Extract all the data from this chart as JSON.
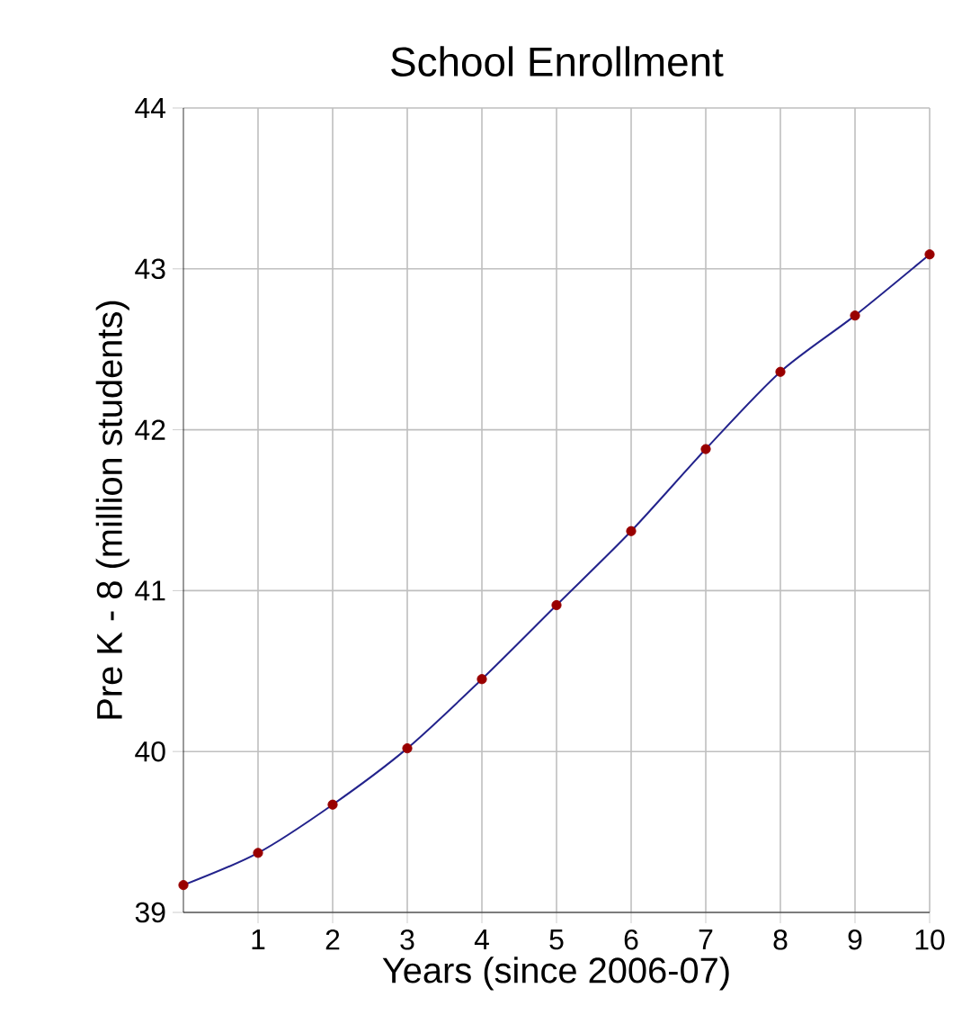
{
  "chart_data": {
    "type": "scatter",
    "title": "School Enrollment",
    "xlabel": "Years (since 2006-07)",
    "ylabel": "Pre K - 8 (million students)",
    "x": [
      0,
      1,
      2,
      3,
      4,
      5,
      6,
      7,
      8,
      9,
      10
    ],
    "series": [
      {
        "type": "line",
        "color": "#23238c",
        "marker": "none",
        "values": [
          39.17,
          39.37,
          39.67,
          40.02,
          40.45,
          40.91,
          41.37,
          41.88,
          42.36,
          42.71,
          43.09
        ]
      },
      {
        "color": "#990000",
        "marker": "circle",
        "values": [
          39.17,
          39.37,
          39.67,
          40.02,
          40.45,
          40.91,
          41.37,
          41.88,
          42.36,
          42.71,
          43.09
        ]
      }
    ],
    "xlim": [
      0,
      10
    ],
    "ylim": [
      39,
      44
    ],
    "xticks": [
      1,
      2,
      3,
      4,
      5,
      6,
      7,
      8,
      9,
      10
    ],
    "yticks": [
      39,
      40,
      41,
      42,
      43,
      44
    ],
    "grid": true
  }
}
